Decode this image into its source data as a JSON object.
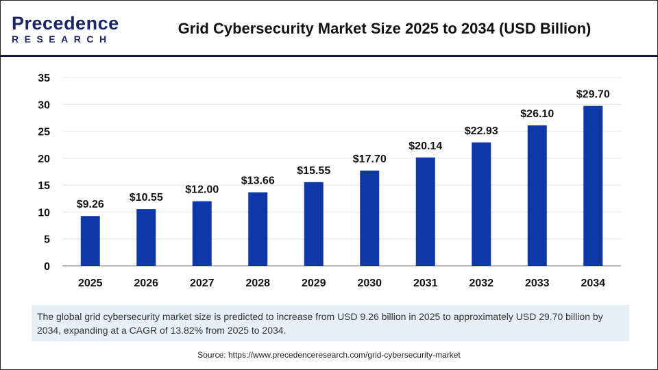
{
  "logo": {
    "line1": "Precedence",
    "line2": "RESEARCH"
  },
  "title": "Grid Cybersecurity Market Size 2025 to 2034 (USD Billion)",
  "chart_data": {
    "type": "bar",
    "title": "Grid Cybersecurity Market Size 2025 to 2034 (USD Billion)",
    "categories": [
      "2025",
      "2026",
      "2027",
      "2028",
      "2029",
      "2030",
      "2031",
      "2032",
      "2033",
      "2034"
    ],
    "values": [
      9.26,
      10.55,
      12.0,
      13.66,
      15.55,
      17.7,
      20.14,
      22.93,
      26.1,
      29.7
    ],
    "data_labels": [
      "$9.26",
      "$10.55",
      "$12.00",
      "$13.66",
      "$15.55",
      "$17.70",
      "$20.14",
      "$22.93",
      "$26.10",
      "$29.70"
    ],
    "yticks": [
      "0",
      "5",
      "10",
      "15",
      "20",
      "25",
      "30",
      "35"
    ],
    "ylim": [
      0,
      35
    ],
    "grid": true,
    "bar_color": "#0e37a8",
    "xlabel": "",
    "ylabel": ""
  },
  "note": "The global grid cybersecurity market size is predicted to increase from USD 9.26 billion in 2025 to approximately USD 29.70 billion by 2034, expanding at a CAGR of 13.82% from 2025 to 2034.",
  "source": "Source: https://www.precedenceresearch.com/grid-cybersecurity-market"
}
